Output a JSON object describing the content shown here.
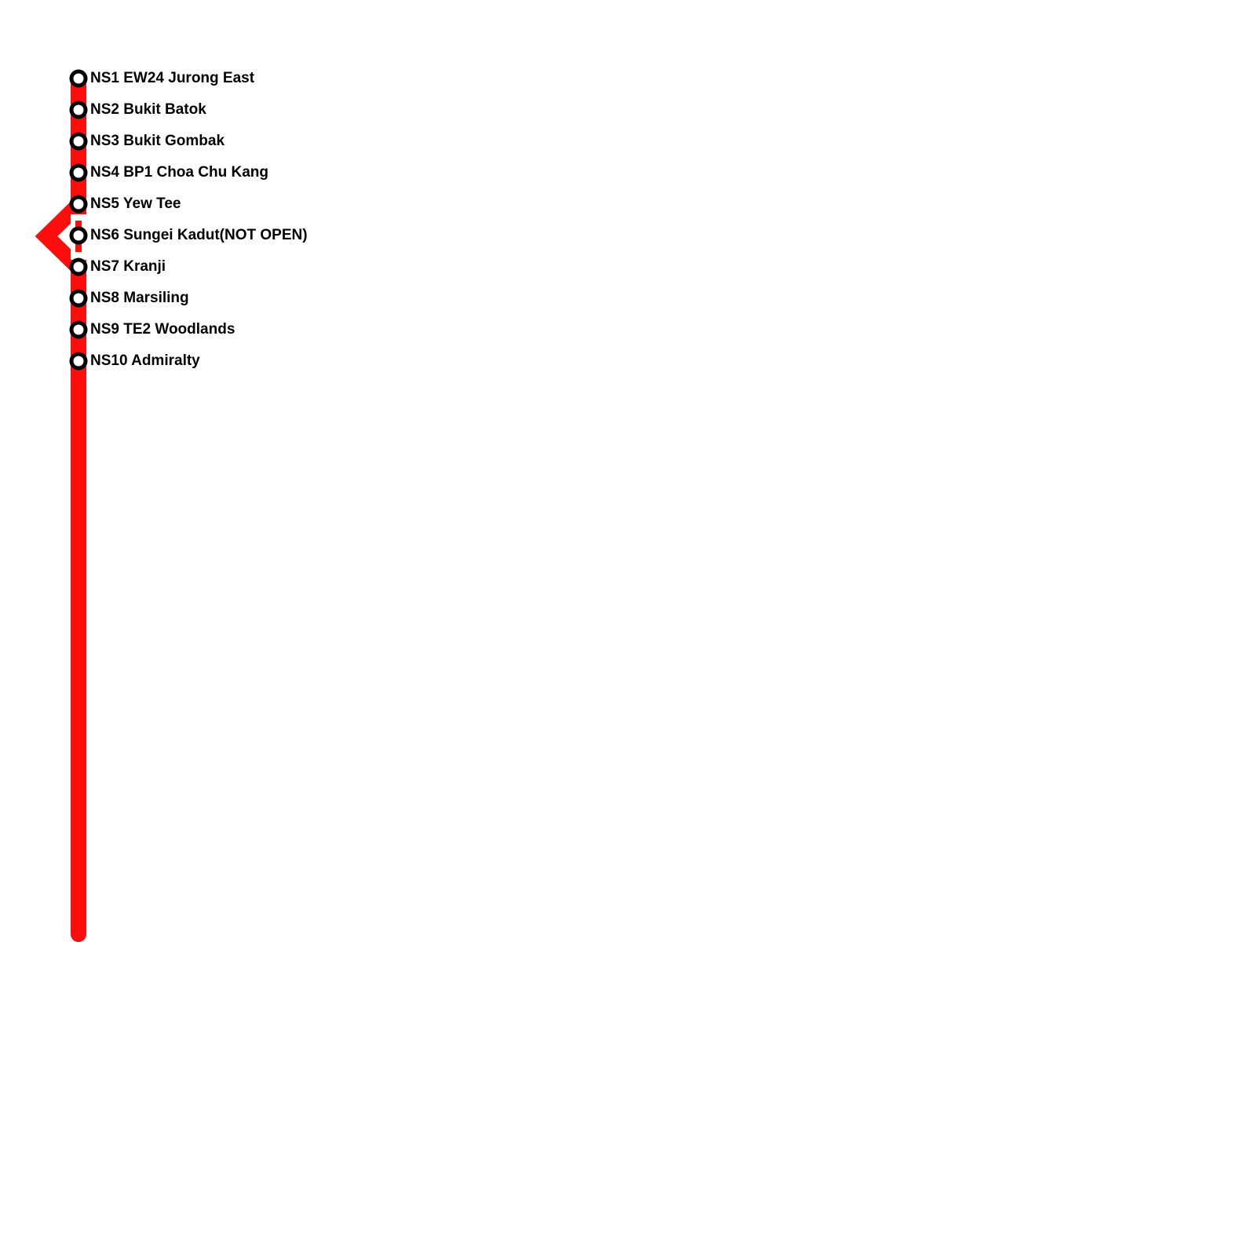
{
  "stations": [
    {
      "label": "NS1 EW24 Jurong East"
    },
    {
      "label": "NS2 Bukit Batok"
    },
    {
      "label": "NS3 Bukit Gombak"
    },
    {
      "label": "NS4 BP1 Choa Chu Kang"
    },
    {
      "label": "NS5 Yew Tee"
    },
    {
      "label": "NS6 Sungei Kadut(NOT OPEN)"
    },
    {
      "label": "NS7 Kranji"
    },
    {
      "label": "NS8 Marsiling"
    },
    {
      "label": "NS9 TE2 Woodlands"
    },
    {
      "label": "NS10 Admiralty"
    }
  ]
}
